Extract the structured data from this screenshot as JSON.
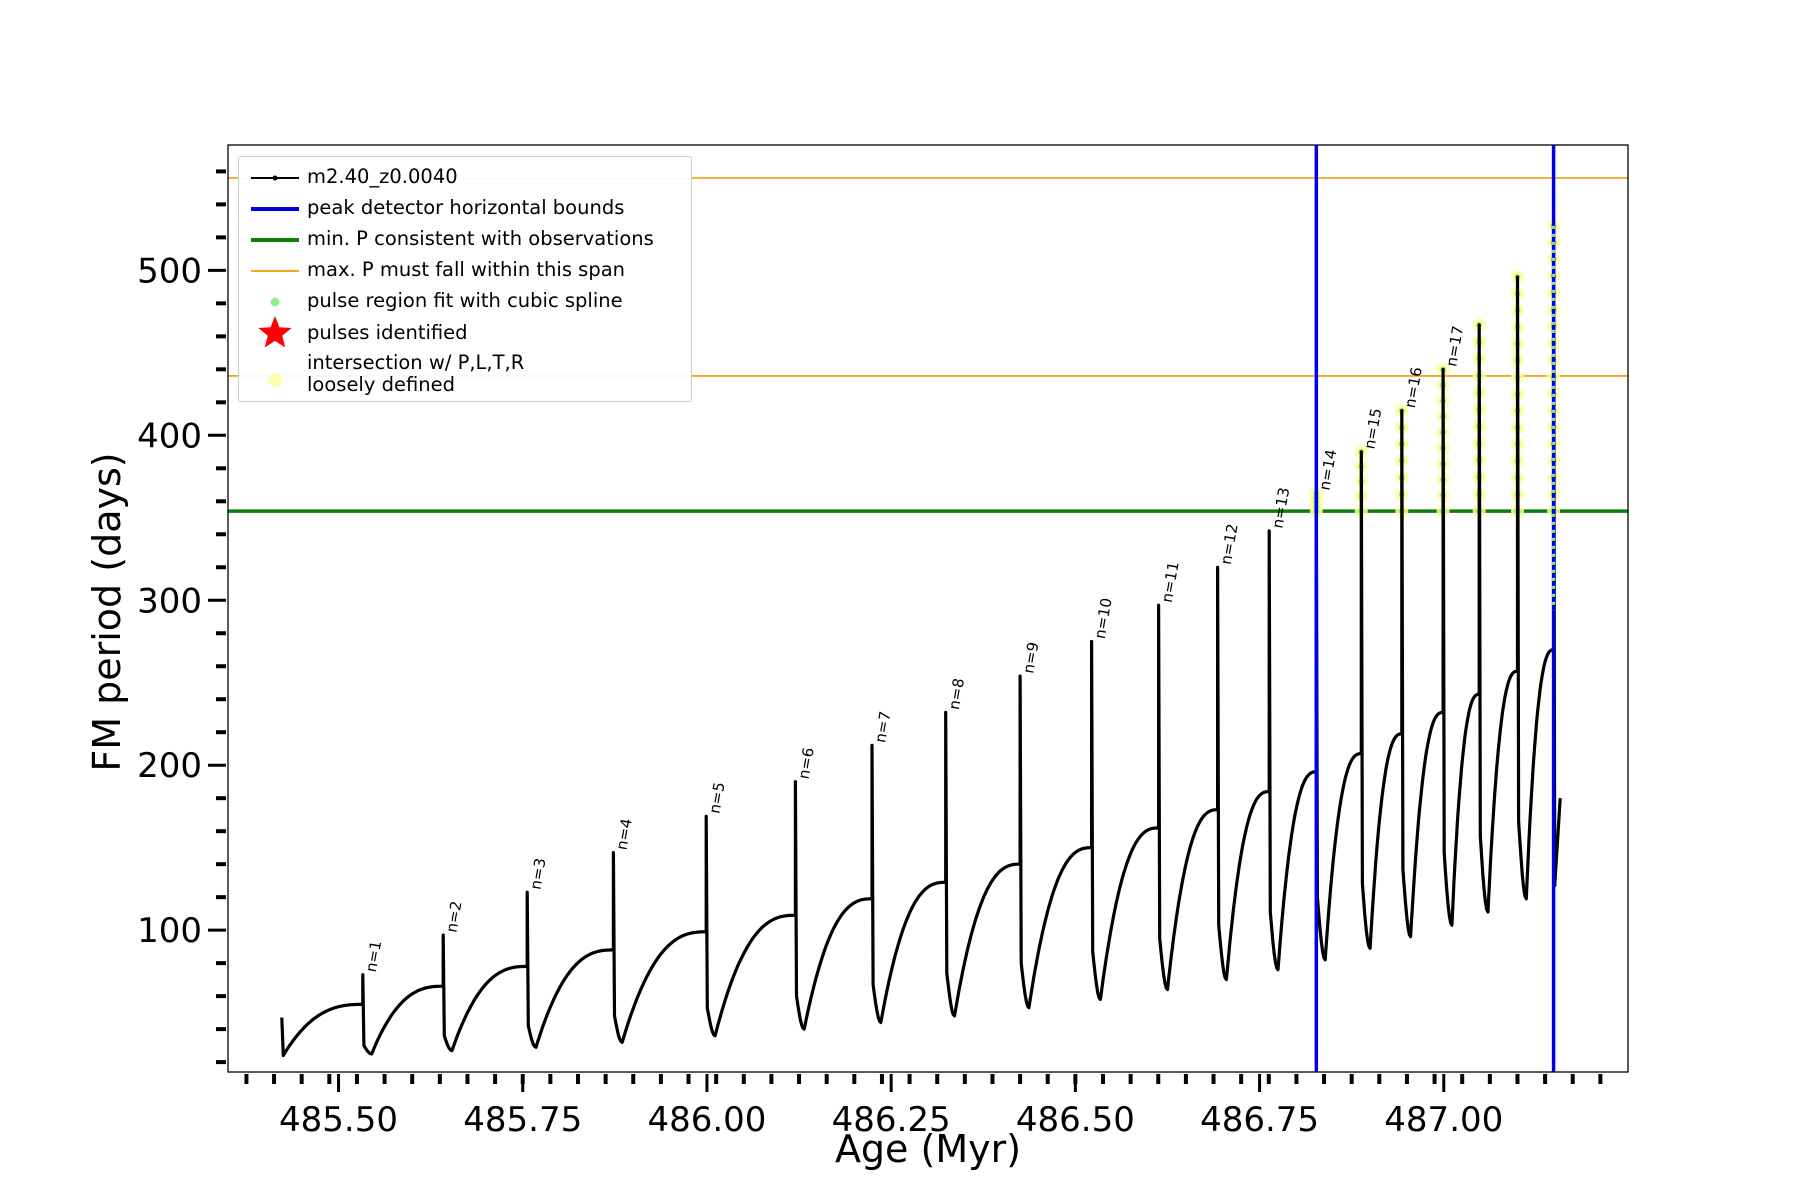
{
  "chart_data": {
    "type": "line",
    "title": "",
    "xlabel": "Age (Myr)",
    "ylabel": "FM period (days)",
    "xlim": [
      485.35,
      487.25
    ],
    "ylim": [
      14,
      576
    ],
    "xticks": [
      485.5,
      485.75,
      486.0,
      486.25,
      486.5,
      486.75,
      487.0
    ],
    "xtick_labels": [
      "485.50",
      "485.75",
      "486.00",
      "486.25",
      "486.50",
      "486.75",
      "487.00"
    ],
    "yticks": [
      100,
      200,
      300,
      400,
      500
    ],
    "ytick_labels": [
      "100",
      "200",
      "300",
      "400",
      "500"
    ],
    "grid": false,
    "legend_position": "top-left",
    "series": [
      {
        "name": "m2.40_z0.0040",
        "color": "#000000",
        "start": [
          485.423,
          47,
          24
        ],
        "cycles": [
          {
            "x": 485.533,
            "before": 55,
            "peak": 73,
            "after": 30,
            "min": 25
          },
          {
            "x": 485.642,
            "before": 66,
            "peak": 97,
            "after": 36,
            "min": 27
          },
          {
            "x": 485.756,
            "before": 78,
            "peak": 123,
            "after": 42,
            "min": 29
          },
          {
            "x": 485.873,
            "before": 88,
            "peak": 147,
            "after": 48,
            "min": 32
          },
          {
            "x": 485.999,
            "before": 99,
            "peak": 169,
            "after": 53,
            "min": 36
          },
          {
            "x": 486.12,
            "before": 109,
            "peak": 190,
            "after": 60,
            "min": 40
          },
          {
            "x": 486.224,
            "before": 119,
            "peak": 212,
            "after": 67,
            "min": 44
          },
          {
            "x": 486.324,
            "before": 129,
            "peak": 232,
            "after": 74,
            "min": 48
          },
          {
            "x": 486.425,
            "before": 140,
            "peak": 254,
            "after": 80,
            "min": 53
          },
          {
            "x": 486.522,
            "before": 150,
            "peak": 275,
            "after": 87,
            "min": 58
          },
          {
            "x": 486.613,
            "before": 162,
            "peak": 297,
            "after": 95,
            "min": 64
          },
          {
            "x": 486.693,
            "before": 173,
            "peak": 320,
            "after": 103,
            "min": 70
          },
          {
            "x": 486.763,
            "before": 184,
            "peak": 342,
            "after": 111,
            "min": 76
          },
          {
            "x": 486.827,
            "before": 196,
            "peak": 365,
            "after": 120,
            "min": 82
          },
          {
            "x": 486.888,
            "before": 207,
            "peak": 390,
            "after": 128,
            "min": 89
          },
          {
            "x": 486.943,
            "before": 219,
            "peak": 415,
            "after": 137,
            "min": 96
          },
          {
            "x": 486.999,
            "before": 232,
            "peak": 440,
            "after": 147,
            "min": 103
          },
          {
            "x": 487.048,
            "before": 243,
            "peak": 467,
            "after": 157,
            "min": 111
          },
          {
            "x": 487.1,
            "before": 257,
            "peak": 496,
            "after": 166,
            "min": 119
          },
          {
            "x": 487.149,
            "before": 270,
            "peak": 527,
            "after": 127
          }
        ],
        "end": [
          487.158,
          180
        ]
      },
      {
        "name": "peak detector horizontal bounds",
        "color": "#0000e6",
        "x": [
          486.827,
          487.149
        ]
      },
      {
        "name": "min. P consistent with observations",
        "color": "#117a11",
        "y": 354
      },
      {
        "name": "max. P must fall within this span",
        "color": "#f5a623",
        "y": [
          436,
          556
        ]
      },
      {
        "name": "pulse region fit with cubic spline",
        "color": "#90ee90"
      },
      {
        "name": "pulses identified",
        "color": "#ff0000"
      },
      {
        "name": "intersection w/ P,L,T,R\nloosely defined",
        "color": "#ffff99"
      }
    ],
    "annotations": [
      "n=1",
      "n=2",
      "n=3",
      "n=4",
      "n=5",
      "n=6",
      "n=7",
      "n=8",
      "n=9",
      "n=10",
      "n=11",
      "n=12",
      "n=13",
      "n=14",
      "n=15",
      "n=16",
      "n=17"
    ]
  },
  "legend": {
    "items": [
      {
        "label": "m2.40_z0.0040"
      },
      {
        "label": "peak detector horizontal bounds"
      },
      {
        "label": "min. P consistent with observations"
      },
      {
        "label": "max. P must fall within this span"
      },
      {
        "label": "pulse region fit with cubic spline"
      },
      {
        "label": "pulses identified"
      },
      {
        "label": "intersection w/ P,L,T,R",
        "label2": "loosely defined"
      }
    ]
  }
}
